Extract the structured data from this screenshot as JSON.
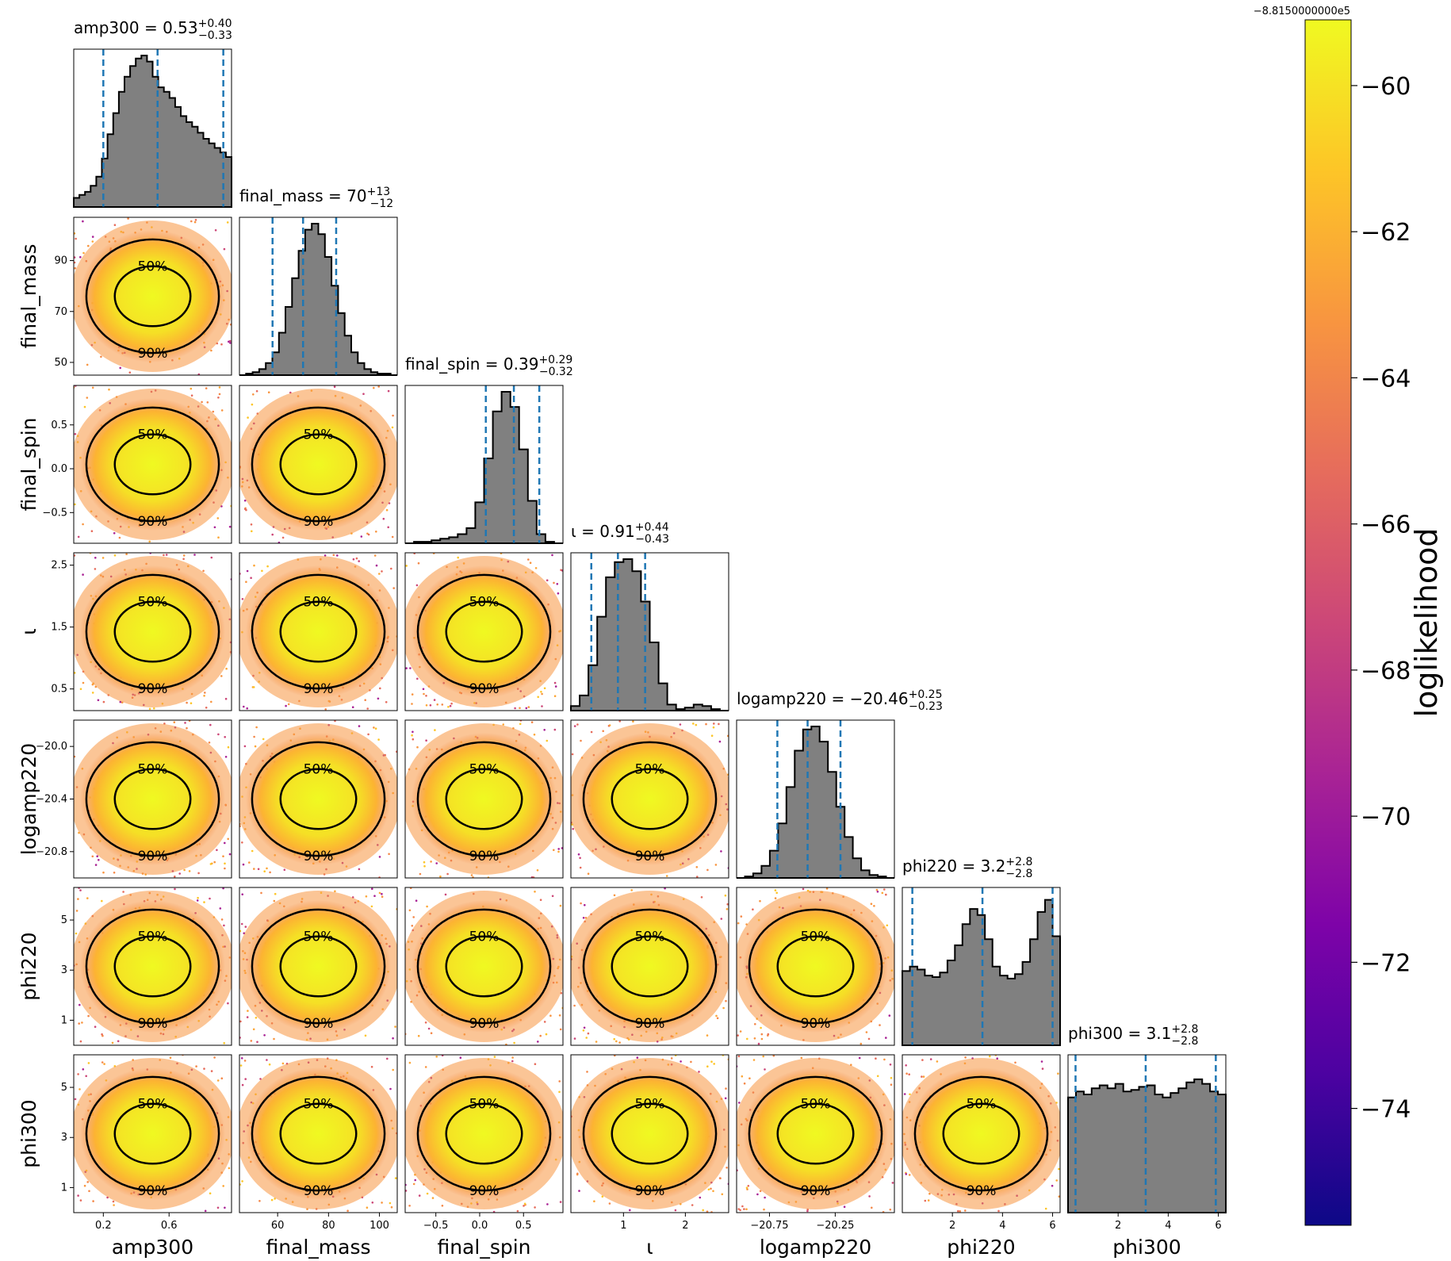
{
  "chart_data": {
    "type": "scatter",
    "description": "corner plot",
    "parameters": [
      {
        "key": "amp300",
        "label": "amp300",
        "range": [
          0.02,
          0.98
        ],
        "ticks": [
          0.2,
          0.6
        ],
        "tick_labels": [
          "0.2",
          "0.6"
        ],
        "title": "amp300 = 0.53",
        "sup": "+0.40",
        "sub": "−0.33",
        "median": 0.53,
        "lo": 0.2,
        "hi": 0.93
      },
      {
        "key": "final_mass",
        "label": "final_mass",
        "range": [
          45,
          107
        ],
        "ticks": [
          60,
          80,
          100
        ],
        "tick_labels": [
          "60",
          "80",
          "100"
        ],
        "yticks": [
          50,
          70,
          90
        ],
        "ytick_labels": [
          "50",
          "70",
          "90"
        ],
        "title": "final_mass = 70",
        "sup": "+13",
        "sub": "−12",
        "median": 70,
        "lo": 58,
        "hi": 83
      },
      {
        "key": "final_spin",
        "label": "final_spin",
        "range": [
          -0.85,
          0.95
        ],
        "ticks": [
          -0.5,
          0.0,
          0.5
        ],
        "tick_labels": [
          "−0.5",
          "0.0",
          "0.5"
        ],
        "title": "final_spin = 0.39",
        "sup": "+0.29",
        "sub": "−0.32",
        "median": 0.39,
        "lo": 0.07,
        "hi": 0.68
      },
      {
        "key": "iota",
        "label": "ι",
        "range": [
          0.15,
          2.7
        ],
        "ticks": [
          1,
          2
        ],
        "tick_labels": [
          "1",
          "2"
        ],
        "yticks": [
          0.5,
          1.5,
          2.5
        ],
        "ytick_labels": [
          "0.5",
          "1.5",
          "2.5"
        ],
        "title": "ι = 0.91",
        "sup": "+0.44",
        "sub": "−0.43",
        "median": 0.91,
        "lo": 0.48,
        "hi": 1.35
      },
      {
        "key": "logamp220",
        "label": "logamp220",
        "range": [
          -21.0,
          -19.8
        ],
        "ticks": [
          -20.75,
          -20.25
        ],
        "tick_labels": [
          "−20.75",
          "−20.25"
        ],
        "yticks": [
          -20.0,
          -20.4,
          -20.8
        ],
        "ytick_labels": [
          "−20.0",
          "−20.4",
          "−20.8"
        ],
        "title": "logamp220 = −20.46",
        "sup": "+0.25",
        "sub": "−0.23",
        "median": -20.46,
        "lo": -20.69,
        "hi": -20.21
      },
      {
        "key": "phi220",
        "label": "phi220",
        "range": [
          0.0,
          6.3
        ],
        "ticks": [
          2,
          4,
          6
        ],
        "tick_labels": [
          "2",
          "4",
          "6"
        ],
        "yticks": [
          1,
          3,
          5
        ],
        "ytick_labels": [
          "1",
          "3",
          "5"
        ],
        "title": "phi220 = 3.2",
        "sup": "+2.8",
        "sub": "−2.8",
        "median": 3.2,
        "lo": 0.4,
        "hi": 6.0
      },
      {
        "key": "phi300",
        "label": "phi300",
        "range": [
          0.0,
          6.3
        ],
        "ticks": [
          2,
          4,
          6
        ],
        "tick_labels": [
          "2",
          "4",
          "6"
        ],
        "yticks": [
          1,
          3,
          5
        ],
        "ytick_labels": [
          "1",
          "3",
          "5"
        ],
        "title": "phi300 = 3.1",
        "sup": "+2.8",
        "sub": "−2.8",
        "median": 3.1,
        "lo": 0.3,
        "hi": 5.9
      }
    ],
    "histograms": [
      [
        0.06,
        0.08,
        0.1,
        0.14,
        0.2,
        0.32,
        0.48,
        0.62,
        0.76,
        0.86,
        0.93,
        0.98,
        1.0,
        0.96,
        0.86,
        0.79,
        0.76,
        0.72,
        0.66,
        0.6,
        0.56,
        0.53,
        0.49,
        0.45,
        0.42,
        0.39,
        0.36,
        0.33
      ],
      [
        0.0,
        0.01,
        0.02,
        0.04,
        0.08,
        0.15,
        0.28,
        0.45,
        0.64,
        0.82,
        0.96,
        1.0,
        0.93,
        0.78,
        0.59,
        0.41,
        0.26,
        0.15,
        0.08,
        0.04,
        0.02,
        0.01,
        0.01,
        0.0
      ],
      [
        0.0,
        0.01,
        0.01,
        0.02,
        0.03,
        0.04,
        0.06,
        0.1,
        0.27,
        0.56,
        0.87,
        1.0,
        0.9,
        0.62,
        0.28,
        0.06,
        0.01,
        0.0
      ],
      [
        0.03,
        0.1,
        0.3,
        0.62,
        0.88,
        0.98,
        1.0,
        0.92,
        0.72,
        0.45,
        0.18,
        0.04,
        0.01,
        0.02,
        0.04,
        0.03,
        0.01,
        0.0
      ],
      [
        0.0,
        0.01,
        0.03,
        0.08,
        0.18,
        0.36,
        0.6,
        0.84,
        0.98,
        1.0,
        0.9,
        0.7,
        0.47,
        0.27,
        0.13,
        0.05,
        0.02,
        0.01,
        0.0
      ],
      [
        0.49,
        0.52,
        0.5,
        0.46,
        0.45,
        0.48,
        0.56,
        0.66,
        0.8,
        0.9,
        0.86,
        0.7,
        0.52,
        0.46,
        0.44,
        0.47,
        0.55,
        0.7,
        0.88,
        0.96,
        0.72
      ],
      [
        0.76,
        0.8,
        0.78,
        0.82,
        0.84,
        0.82,
        0.85,
        0.8,
        0.81,
        0.83,
        0.84,
        0.78,
        0.76,
        0.79,
        0.82,
        0.86,
        0.88,
        0.85,
        0.8,
        0.78
      ]
    ],
    "colorbar": {
      "label": "loglikelihood",
      "offset_text": "−8.8150000000e5",
      "range": [
        -75.6,
        -59.1
      ],
      "ticks": [
        -60,
        -62,
        -64,
        -66,
        -68,
        -70,
        -72,
        -74
      ],
      "tick_labels": [
        "−60",
        "−62",
        "−64",
        "−66",
        "−68",
        "−70",
        "−72",
        "−74"
      ],
      "colormap": "plasma"
    },
    "contour_labels": [
      "50%",
      "90%"
    ]
  },
  "colors": {
    "hist_fill": "#808080",
    "quantile_line": "#1f77b4",
    "contour": "#000000"
  }
}
